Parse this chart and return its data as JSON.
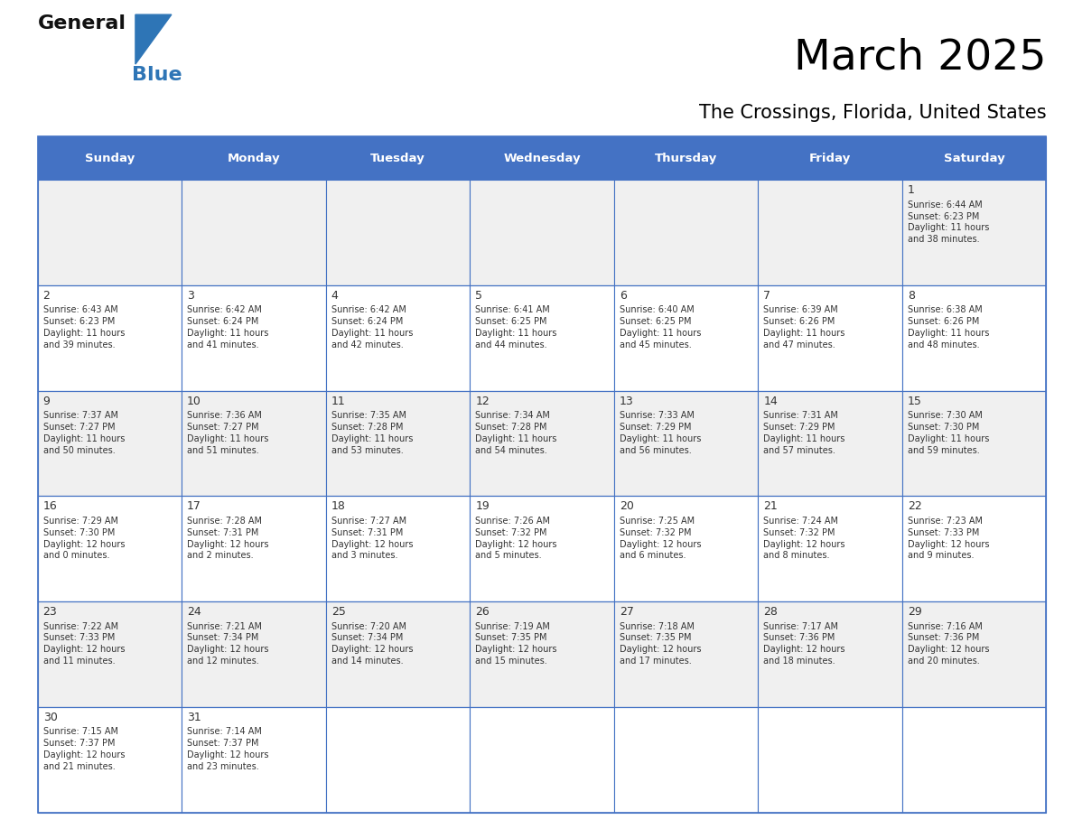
{
  "title": "March 2025",
  "subtitle": "The Crossings, Florida, United States",
  "days_of_week": [
    "Sunday",
    "Monday",
    "Tuesday",
    "Wednesday",
    "Thursday",
    "Friday",
    "Saturday"
  ],
  "header_bg": "#4472C4",
  "header_text_color": "#FFFFFF",
  "cell_bg_odd": "#F0F0F0",
  "cell_bg_even": "#FFFFFF",
  "border_color": "#4472C4",
  "text_color": "#333333",
  "calendar_data": [
    [
      null,
      null,
      null,
      null,
      null,
      null,
      {
        "day": 1,
        "sunrise": "6:44 AM",
        "sunset": "6:23 PM",
        "daylight": "11 hours\nand 38 minutes."
      }
    ],
    [
      {
        "day": 2,
        "sunrise": "6:43 AM",
        "sunset": "6:23 PM",
        "daylight": "11 hours\nand 39 minutes."
      },
      {
        "day": 3,
        "sunrise": "6:42 AM",
        "sunset": "6:24 PM",
        "daylight": "11 hours\nand 41 minutes."
      },
      {
        "day": 4,
        "sunrise": "6:42 AM",
        "sunset": "6:24 PM",
        "daylight": "11 hours\nand 42 minutes."
      },
      {
        "day": 5,
        "sunrise": "6:41 AM",
        "sunset": "6:25 PM",
        "daylight": "11 hours\nand 44 minutes."
      },
      {
        "day": 6,
        "sunrise": "6:40 AM",
        "sunset": "6:25 PM",
        "daylight": "11 hours\nand 45 minutes."
      },
      {
        "day": 7,
        "sunrise": "6:39 AM",
        "sunset": "6:26 PM",
        "daylight": "11 hours\nand 47 minutes."
      },
      {
        "day": 8,
        "sunrise": "6:38 AM",
        "sunset": "6:26 PM",
        "daylight": "11 hours\nand 48 minutes."
      }
    ],
    [
      {
        "day": 9,
        "sunrise": "7:37 AM",
        "sunset": "7:27 PM",
        "daylight": "11 hours\nand 50 minutes."
      },
      {
        "day": 10,
        "sunrise": "7:36 AM",
        "sunset": "7:27 PM",
        "daylight": "11 hours\nand 51 minutes."
      },
      {
        "day": 11,
        "sunrise": "7:35 AM",
        "sunset": "7:28 PM",
        "daylight": "11 hours\nand 53 minutes."
      },
      {
        "day": 12,
        "sunrise": "7:34 AM",
        "sunset": "7:28 PM",
        "daylight": "11 hours\nand 54 minutes."
      },
      {
        "day": 13,
        "sunrise": "7:33 AM",
        "sunset": "7:29 PM",
        "daylight": "11 hours\nand 56 minutes."
      },
      {
        "day": 14,
        "sunrise": "7:31 AM",
        "sunset": "7:29 PM",
        "daylight": "11 hours\nand 57 minutes."
      },
      {
        "day": 15,
        "sunrise": "7:30 AM",
        "sunset": "7:30 PM",
        "daylight": "11 hours\nand 59 minutes."
      }
    ],
    [
      {
        "day": 16,
        "sunrise": "7:29 AM",
        "sunset": "7:30 PM",
        "daylight": "12 hours\nand 0 minutes."
      },
      {
        "day": 17,
        "sunrise": "7:28 AM",
        "sunset": "7:31 PM",
        "daylight": "12 hours\nand 2 minutes."
      },
      {
        "day": 18,
        "sunrise": "7:27 AM",
        "sunset": "7:31 PM",
        "daylight": "12 hours\nand 3 minutes."
      },
      {
        "day": 19,
        "sunrise": "7:26 AM",
        "sunset": "7:32 PM",
        "daylight": "12 hours\nand 5 minutes."
      },
      {
        "day": 20,
        "sunrise": "7:25 AM",
        "sunset": "7:32 PM",
        "daylight": "12 hours\nand 6 minutes."
      },
      {
        "day": 21,
        "sunrise": "7:24 AM",
        "sunset": "7:32 PM",
        "daylight": "12 hours\nand 8 minutes."
      },
      {
        "day": 22,
        "sunrise": "7:23 AM",
        "sunset": "7:33 PM",
        "daylight": "12 hours\nand 9 minutes."
      }
    ],
    [
      {
        "day": 23,
        "sunrise": "7:22 AM",
        "sunset": "7:33 PM",
        "daylight": "12 hours\nand 11 minutes."
      },
      {
        "day": 24,
        "sunrise": "7:21 AM",
        "sunset": "7:34 PM",
        "daylight": "12 hours\nand 12 minutes."
      },
      {
        "day": 25,
        "sunrise": "7:20 AM",
        "sunset": "7:34 PM",
        "daylight": "12 hours\nand 14 minutes."
      },
      {
        "day": 26,
        "sunrise": "7:19 AM",
        "sunset": "7:35 PM",
        "daylight": "12 hours\nand 15 minutes."
      },
      {
        "day": 27,
        "sunrise": "7:18 AM",
        "sunset": "7:35 PM",
        "daylight": "12 hours\nand 17 minutes."
      },
      {
        "day": 28,
        "sunrise": "7:17 AM",
        "sunset": "7:36 PM",
        "daylight": "12 hours\nand 18 minutes."
      },
      {
        "day": 29,
        "sunrise": "7:16 AM",
        "sunset": "7:36 PM",
        "daylight": "12 hours\nand 20 minutes."
      }
    ],
    [
      {
        "day": 30,
        "sunrise": "7:15 AM",
        "sunset": "7:37 PM",
        "daylight": "12 hours\nand 21 minutes."
      },
      {
        "day": 31,
        "sunrise": "7:14 AM",
        "sunset": "7:37 PM",
        "daylight": "12 hours\nand 23 minutes."
      },
      null,
      null,
      null,
      null,
      null
    ]
  ],
  "logo_color_general": "#111111",
  "logo_color_blue": "#2E75B6",
  "logo_triangle_color": "#2E75B6",
  "fig_width": 11.88,
  "fig_height": 9.18,
  "fig_dpi": 100
}
